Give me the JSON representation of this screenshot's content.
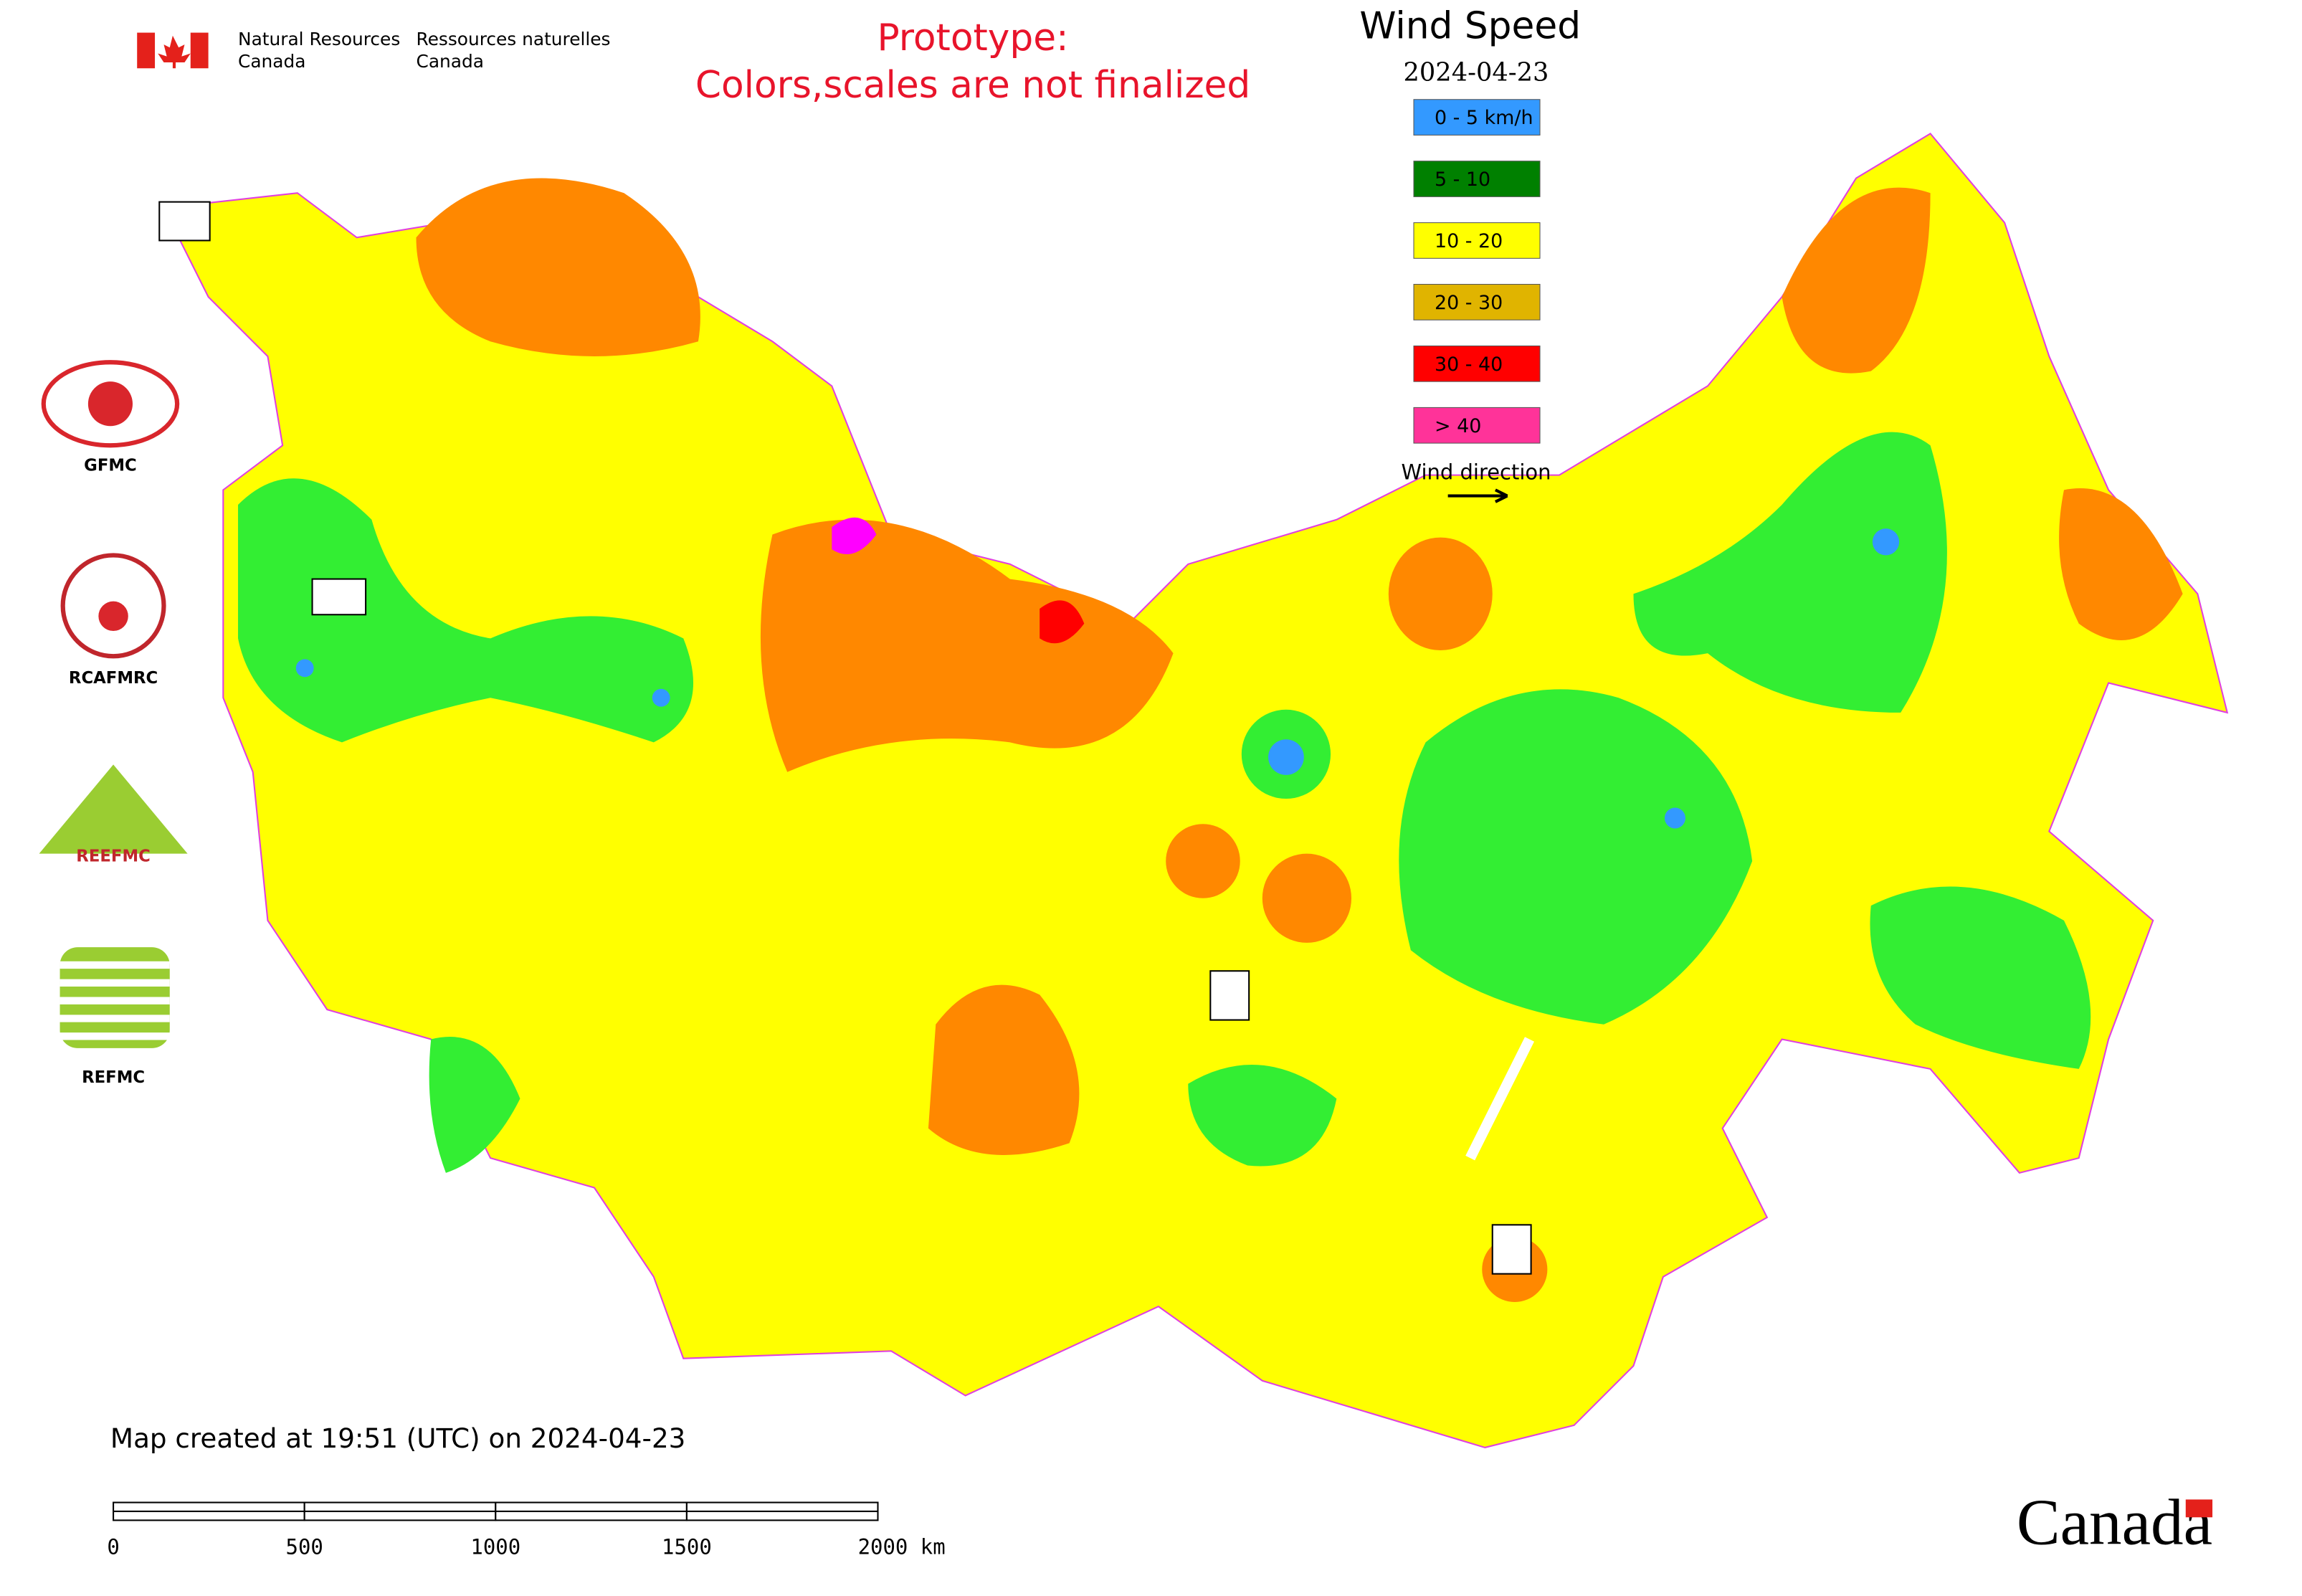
{
  "header": {
    "agency_en": [
      "Natural Resources",
      "Canada"
    ],
    "agency_fr": [
      "Ressources naturelles",
      "Canada"
    ],
    "notice": [
      "Prototype:",
      "Colors,scales are not finalized"
    ]
  },
  "legend": {
    "title": "Wind Speed",
    "date": "2024-04-23",
    "items": [
      {
        "label": "0 - 5 km/h",
        "color": "#3399ff"
      },
      {
        "label": "5 - 10",
        "color": "#008000"
      },
      {
        "label": "10 - 20",
        "color": "#ffff00"
      },
      {
        "label": "20 - 30",
        "color": "#e0b400"
      },
      {
        "label": "30 - 40",
        "color": "#ff0000"
      },
      {
        "label": "> 40",
        "color": "#ff3399"
      }
    ],
    "wind_direction": "Wind direction"
  },
  "logos": {
    "labels": [
      "GFMC",
      "RCAFMRC",
      "REFMC"
    ],
    "reefmc": "REEFMC"
  },
  "footer": {
    "created": "Map created at 19:51 (UTC) on 2024-04-23",
    "scale_labels": [
      "0",
      "500",
      "1000",
      "1500",
      "2000 km"
    ],
    "wordmark": "Canada"
  }
}
